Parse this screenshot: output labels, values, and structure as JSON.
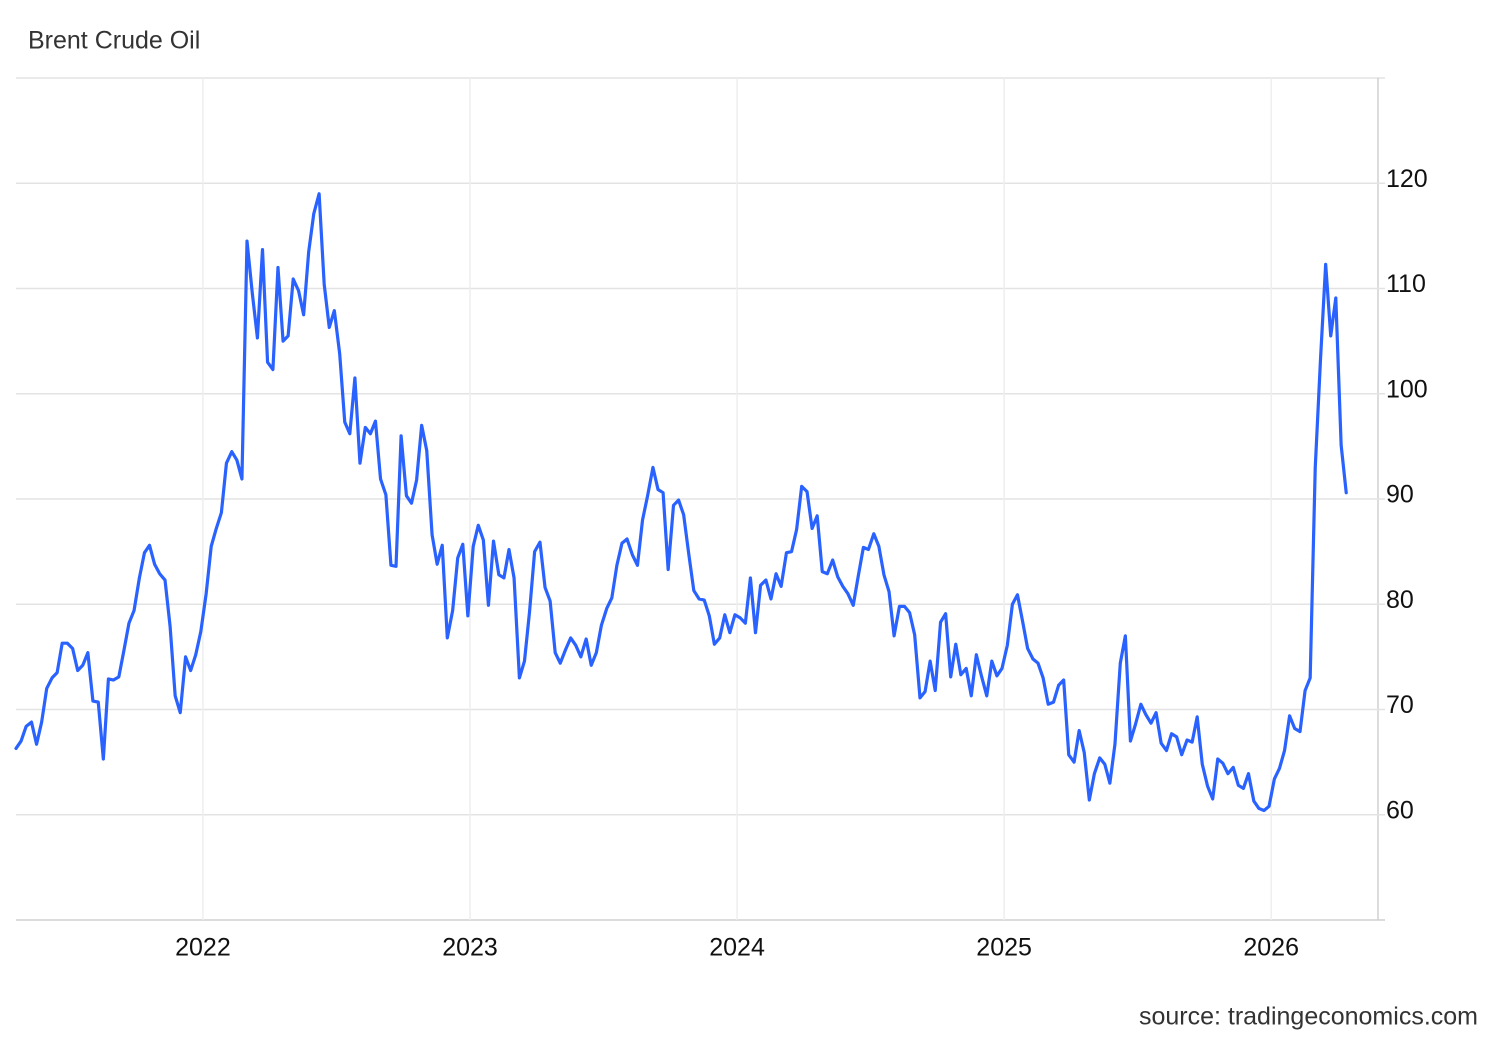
{
  "chart_data": {
    "type": "line",
    "title": "Brent Crude Oil",
    "source": "source: tradingeconomics.com",
    "color": "#2962ff",
    "grid": true,
    "xlim": [
      2021.3,
      2026.4
    ],
    "xticks": [
      2022,
      2023,
      2024,
      2025,
      2026
    ],
    "ylim": [
      50,
      130
    ],
    "yticks": [
      60,
      70,
      80,
      90,
      100,
      110,
      120
    ],
    "x": [
      2021.3,
      2021.319,
      2021.338,
      2021.358,
      2021.377,
      2021.396,
      2021.415,
      2021.435,
      2021.454,
      2021.473,
      2021.492,
      2021.512,
      2021.531,
      2021.55,
      2021.569,
      2021.588,
      2021.608,
      2021.627,
      2021.646,
      2021.665,
      2021.685,
      2021.704,
      2021.723,
      2021.742,
      2021.762,
      2021.781,
      2021.8,
      2021.819,
      2021.838,
      2021.858,
      2021.877,
      2021.896,
      2021.915,
      2021.935,
      2021.954,
      2021.973,
      2021.992,
      2022.012,
      2022.031,
      2022.05,
      2022.069,
      2022.088,
      2022.108,
      2022.127,
      2022.146,
      2022.165,
      2022.185,
      2022.204,
      2022.223,
      2022.242,
      2022.262,
      2022.281,
      2022.3,
      2022.319,
      2022.338,
      2022.358,
      2022.377,
      2022.396,
      2022.415,
      2022.435,
      2022.454,
      2022.473,
      2022.492,
      2022.512,
      2022.531,
      2022.55,
      2022.569,
      2022.588,
      2022.608,
      2022.627,
      2022.646,
      2022.665,
      2022.685,
      2022.704,
      2022.723,
      2022.742,
      2022.762,
      2022.781,
      2022.8,
      2022.819,
      2022.838,
      2022.858,
      2022.877,
      2022.896,
      2022.915,
      2022.935,
      2022.954,
      2022.973,
      2022.992,
      2023.012,
      2023.031,
      2023.05,
      2023.069,
      2023.088,
      2023.108,
      2023.127,
      2023.146,
      2023.165,
      2023.185,
      2023.204,
      2023.223,
      2023.242,
      2023.262,
      2023.281,
      2023.3,
      2023.319,
      2023.338,
      2023.358,
      2023.377,
      2023.396,
      2023.415,
      2023.435,
      2023.454,
      2023.473,
      2023.492,
      2023.512,
      2023.531,
      2023.55,
      2023.569,
      2023.588,
      2023.608,
      2023.627,
      2023.646,
      2023.665,
      2023.685,
      2023.704,
      2023.723,
      2023.742,
      2023.762,
      2023.781,
      2023.8,
      2023.819,
      2023.838,
      2023.858,
      2023.877,
      2023.896,
      2023.915,
      2023.935,
      2023.954,
      2023.973,
      2023.992,
      2024.012,
      2024.031,
      2024.05,
      2024.069,
      2024.088,
      2024.108,
      2024.127,
      2024.146,
      2024.165,
      2024.185,
      2024.204,
      2024.223,
      2024.242,
      2024.262,
      2024.281,
      2024.3,
      2024.319,
      2024.338,
      2024.358,
      2024.377,
      2024.396,
      2024.415,
      2024.435,
      2024.454,
      2024.473,
      2024.492,
      2024.512,
      2024.531,
      2024.55,
      2024.569,
      2024.588,
      2024.608,
      2024.627,
      2024.646,
      2024.665,
      2024.685,
      2024.704,
      2024.723,
      2024.742,
      2024.762,
      2024.781,
      2024.8,
      2024.819,
      2024.838,
      2024.858,
      2024.877,
      2024.896,
      2024.915,
      2024.935,
      2024.954,
      2024.973,
      2024.992,
      2025.012,
      2025.031,
      2025.05,
      2025.069,
      2025.088,
      2025.108,
      2025.127,
      2025.146,
      2025.165,
      2025.185,
      2025.204,
      2025.223,
      2025.242,
      2025.262,
      2025.281,
      2025.3,
      2025.319,
      2025.338,
      2025.358,
      2025.377,
      2025.396,
      2025.415,
      2025.435,
      2025.454,
      2025.473,
      2025.492,
      2025.512,
      2025.531,
      2025.55,
      2025.569,
      2025.588,
      2025.608,
      2025.627,
      2025.646,
      2025.665,
      2025.685,
      2025.704,
      2025.723,
      2025.742,
      2025.762,
      2025.781,
      2025.8,
      2025.819,
      2025.838,
      2025.858,
      2025.877,
      2025.896,
      2025.915,
      2025.935,
      2025.954,
      2025.973,
      2025.992,
      2026.012,
      2026.031,
      2026.05,
      2026.069,
      2026.088,
      2026.108,
      2026.127,
      2026.146,
      2026.165,
      2026.185,
      2026.204,
      2026.223,
      2026.242,
      2026.262,
      2026.281
    ],
    "values": [
      66.3,
      67.0,
      68.4,
      68.8,
      66.7,
      68.8,
      72.0,
      73.0,
      73.5,
      76.3,
      76.3,
      75.8,
      73.7,
      74.2,
      75.4,
      70.8,
      70.7,
      65.3,
      72.9,
      72.8,
      73.1,
      75.6,
      78.2,
      79.4,
      82.5,
      84.9,
      85.6,
      83.8,
      82.9,
      82.3,
      77.9,
      71.3,
      69.7,
      75.0,
      73.7,
      75.2,
      77.4,
      81.0,
      85.5,
      87.2,
      88.7,
      93.4,
      94.5,
      93.7,
      91.9,
      114.5,
      109.5,
      105.3,
      113.7,
      103.0,
      102.3,
      112.0,
      105.0,
      105.5,
      110.9,
      109.8,
      107.5,
      113.5,
      117.1,
      119.0,
      110.4,
      106.3,
      107.9,
      103.8,
      97.3,
      96.2,
      101.5,
      93.4,
      96.8,
      96.2,
      97.4,
      91.9,
      90.4,
      83.7,
      83.6,
      96.0,
      90.3,
      89.6,
      91.8,
      97.0,
      94.6,
      86.6,
      83.8,
      85.6,
      76.8,
      79.4,
      84.4,
      85.7,
      78.9,
      85.5,
      87.5,
      86.1,
      79.9,
      86.0,
      82.8,
      82.5,
      85.2,
      82.5,
      73.0,
      74.6,
      79.3,
      85.0,
      85.9,
      81.6,
      80.3,
      75.4,
      74.4,
      75.7,
      76.8,
      76.1,
      75.0,
      76.7,
      74.2,
      75.4,
      78.0,
      79.6,
      80.6,
      83.7,
      85.8,
      86.2,
      84.7,
      83.7,
      88.0,
      90.3,
      93.0,
      90.9,
      90.6,
      83.3,
      89.4,
      89.9,
      88.5,
      84.8,
      81.3,
      80.5,
      80.4,
      78.9,
      76.2,
      76.8,
      79.0,
      77.3,
      79.0,
      78.7,
      78.2,
      82.5,
      77.3,
      81.8,
      82.3,
      80.5,
      82.9,
      81.7,
      84.9,
      85.0,
      87.1,
      91.2,
      90.7,
      87.2,
      88.4,
      83.1,
      82.9,
      84.2,
      82.6,
      81.7,
      81.0,
      79.9,
      82.7,
      85.4,
      85.2,
      86.7,
      85.5,
      82.8,
      81.2,
      77.0,
      79.8,
      79.8,
      79.2,
      77.1,
      71.1,
      71.7,
      74.6,
      71.8,
      78.3,
      79.1,
      73.1,
      76.2,
      73.3,
      73.9,
      71.3,
      75.2,
      73.2,
      71.3,
      74.6,
      73.2,
      73.9,
      76.1,
      80.0,
      80.9,
      78.4,
      75.8,
      74.8,
      74.4,
      73.0,
      70.5,
      70.7,
      72.3,
      72.8,
      65.7,
      65.0,
      68.0,
      65.9,
      61.4,
      63.9,
      65.4,
      64.8,
      63.0,
      66.7,
      74.4,
      77.0,
      67.0,
      68.6,
      70.5,
      69.5,
      68.7,
      69.7,
      66.8,
      66.1,
      67.7,
      67.4,
      65.7,
      67.1,
      66.9,
      69.3,
      64.8,
      62.7,
      61.5,
      65.3,
      64.9,
      63.9,
      64.5,
      62.8,
      62.5,
      63.9,
      61.3,
      60.6,
      60.4,
      60.8,
      63.4,
      64.4,
      66.1,
      69.4,
      68.2,
      67.9,
      71.8,
      73.0,
      93.0,
      103.4,
      112.3,
      105.5,
      109.1,
      95.1,
      90.6
    ]
  }
}
